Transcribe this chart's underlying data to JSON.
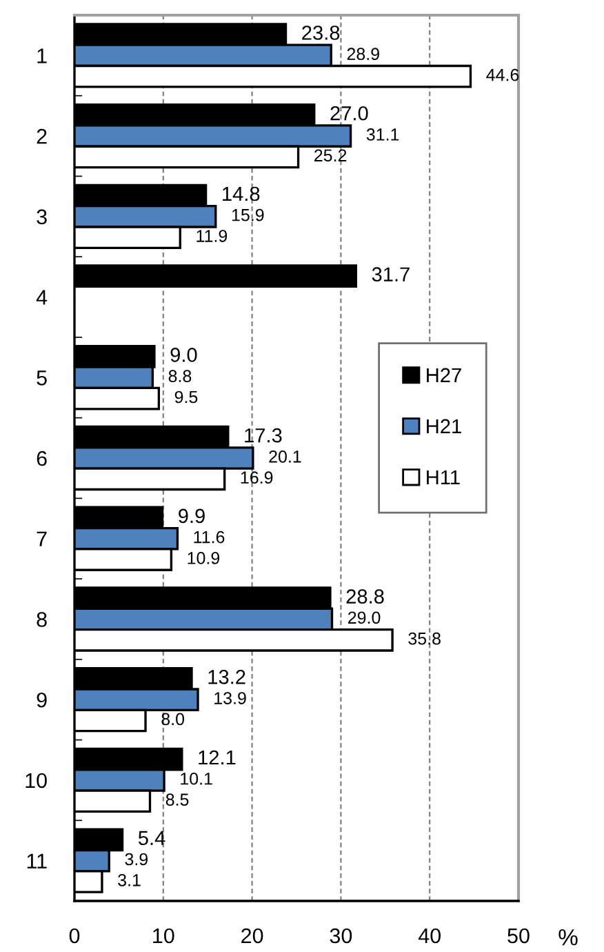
{
  "chart_data": {
    "type": "bar",
    "orientation": "horizontal",
    "categories": [
      "1",
      "2",
      "3",
      "4",
      "5",
      "6",
      "7",
      "8",
      "9",
      "10",
      "11"
    ],
    "series": [
      {
        "name": "H27",
        "color": "#000000",
        "values": [
          23.8,
          27.0,
          14.8,
          31.7,
          9.0,
          17.3,
          9.9,
          28.8,
          13.2,
          12.1,
          5.4
        ],
        "value_labels": [
          "23.8",
          "27.0",
          "14.8",
          "31.7",
          "9.0",
          "17.3",
          "9.9",
          "28.8",
          "13.2",
          "12.1",
          "5.4"
        ]
      },
      {
        "name": "H21",
        "color": "#4f81bd",
        "values": [
          28.9,
          31.1,
          15.9,
          null,
          8.8,
          20.1,
          11.6,
          29.0,
          13.9,
          10.1,
          3.9
        ],
        "value_labels": [
          "28.9",
          "31.1",
          "15.9",
          null,
          "8.8",
          "20.1",
          "11.6",
          "29.0",
          "13.9",
          "10.1",
          "3.9"
        ]
      },
      {
        "name": "H11",
        "color": "#ffffff",
        "values": [
          44.6,
          25.2,
          11.9,
          null,
          9.5,
          16.9,
          10.9,
          35.8,
          8.0,
          8.5,
          3.1
        ],
        "value_labels": [
          "44.6",
          "25.2",
          "11.9",
          null,
          "9.5",
          "16.9",
          "10.9",
          "35.8",
          "8.0",
          "8.5",
          "3.1"
        ]
      }
    ],
    "xlim": [
      0,
      50
    ],
    "xticks": [
      0,
      10,
      20,
      30,
      40,
      50
    ],
    "xlabel": "%",
    "grid": "x",
    "legend": "right"
  }
}
